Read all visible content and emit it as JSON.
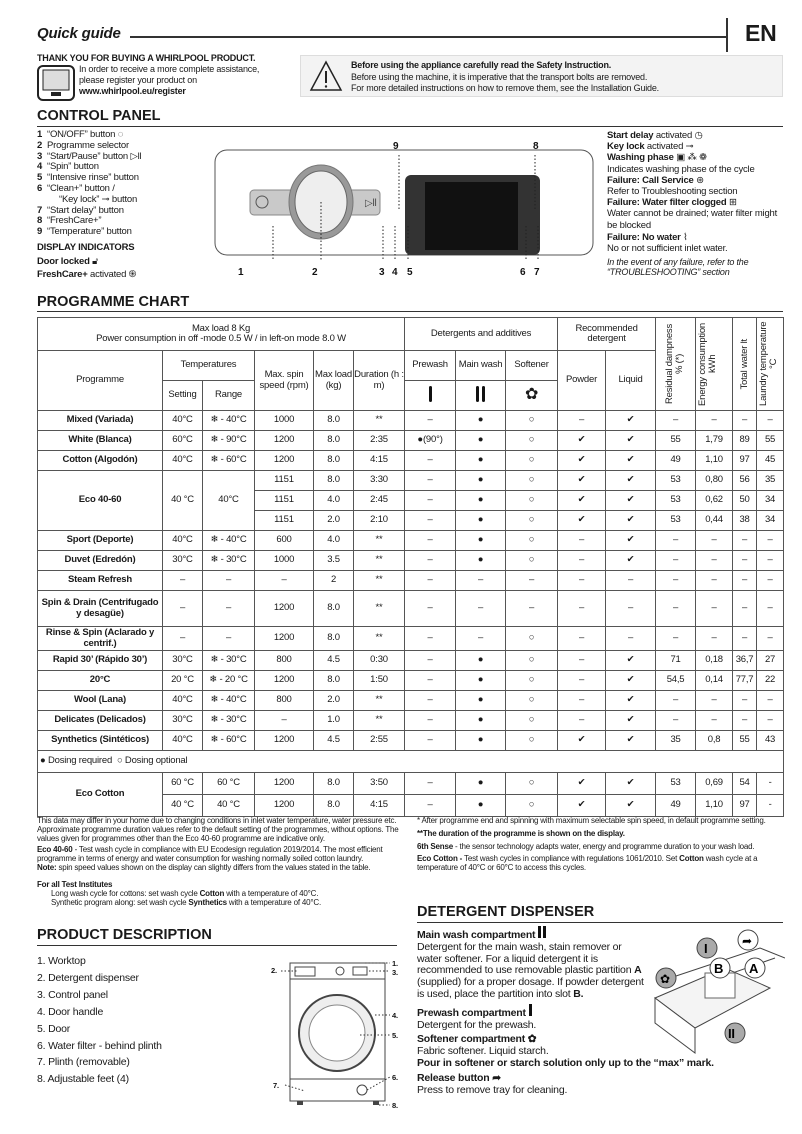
{
  "header": {
    "title": "Quick guide",
    "lang": "EN"
  },
  "thanks": {
    "heading": "THANK YOU FOR BUYING A WHIRLPOOL PRODUCT.",
    "line1": "In order to receive a more complete assistance,",
    "line2": "please register your product on",
    "url": "www.whirlpool.eu/register"
  },
  "safety": {
    "heading": "Before using the appliance carefully read the Safety Instruction.",
    "line1": "Before using the machine, it is imperative that the transport bolts are removed.",
    "line2": "For more detailed instructions on how to remove them, see the Installation Guide."
  },
  "control_panel": {
    "heading": "CONTROL PANEL",
    "items": [
      {
        "n": "1",
        "label": "“ON/OFF” button ◌"
      },
      {
        "n": "2",
        "label": "Programme selector"
      },
      {
        "n": "3",
        "label": "“Start/Pause” button ▷ll"
      },
      {
        "n": "4",
        "label": "“Spin” button"
      },
      {
        "n": "5",
        "label": "“Intensive rinse” button"
      },
      {
        "n": "6",
        "label": "“Clean+” button /"
      },
      {
        "n": "",
        "label": "“Key lock” ⊸ button"
      },
      {
        "n": "7",
        "label": "“Start delay” button"
      },
      {
        "n": "8",
        "label": "“FreshCare+”"
      },
      {
        "n": "9",
        "label": "“Temperature” button"
      }
    ],
    "display_heading": "DISPLAY INDICATORS",
    "door_locked": "Door locked",
    "freshcare_b": "FreshCare+",
    "freshcare_rest": " activated",
    "callouts": [
      "1",
      "2",
      "3",
      "4",
      "5",
      "6",
      "7",
      "8",
      "9"
    ],
    "right": {
      "start_delay_b": "Start delay",
      "start_delay": " activated",
      "key_lock_b": "Key lock",
      "key_lock": " activated",
      "washing_phase_b": "Washing phase",
      "washing_phase_desc": "Indicates washing phase of the cycle",
      "call_service_b": "Failure: Call Service",
      "call_service_desc": "Refer to Troubleshooting section",
      "filter_b": "Failure: Water filter clogged",
      "filter_desc": "Water cannot be drained; water filter might be blocked",
      "no_water_b": "Failure: No water",
      "no_water_desc": "No or not sufficient inlet water.",
      "failure_note": "In the event of any failure, refer to the “TROUBLESHOOTING” section"
    }
  },
  "programme_chart": {
    "heading": "PROGRAMME CHART",
    "top_header": {
      "line1": "Max load 8 Kg",
      "line2": "Power consumption in off -mode 0.5 W / in left-on mode 8.0 W",
      "detergents": "Detergents and additives",
      "recommended": "Recommended detergent",
      "residual": "Residual dampness % (*)",
      "energy": "Energy consumption kWh",
      "water": "Total water lt",
      "laundry_temp": "Laundry temperature °C"
    },
    "sub_header": {
      "programme": "Programme",
      "temperatures": "Temperatures",
      "setting": "Setting",
      "range": "Range",
      "spin": "Max. spin speed (rpm)",
      "load": "Max load (kg)",
      "duration": "Duration (h : m)",
      "prewash": "Prewash",
      "main_wash": "Main wash",
      "softener": "Softener",
      "powder": "Powder",
      "liquid": "Liquid"
    },
    "rows_a": [
      {
        "shared": [],
        "variants": [
          [
            "Mixed (Variada)",
            "40°C",
            "❄ - 40°C",
            "1000",
            "8.0",
            "**",
            "–",
            "●",
            "○",
            "–",
            "✔",
            "–",
            "–",
            "–",
            "–"
          ]
        ]
      },
      {
        "shared": [],
        "variants": [
          [
            "White (Blanca)",
            "60°C",
            "❄ - 90°C",
            "1200",
            "8.0",
            "2:35",
            "●(90°)",
            "●",
            "○",
            "✔",
            "✔",
            "55",
            "1,79",
            "89",
            "55"
          ]
        ]
      },
      {
        "shared": [],
        "variants": [
          [
            "Cotton (Algodón)",
            "40°C",
            "❄ - 60°C",
            "1200",
            "8.0",
            "4:15",
            "–",
            "●",
            "○",
            "✔",
            "✔",
            "49",
            "1,10",
            "97",
            "45"
          ]
        ]
      },
      {
        "shared": [
          "Eco 40-60",
          "40 °C",
          "40°C"
        ],
        "variants": [
          [
            "1151",
            "8.0",
            "3:30",
            "–",
            "●",
            "○",
            "✔",
            "✔",
            "53",
            "0,80",
            "56",
            "35"
          ],
          [
            "1151",
            "4.0",
            "2:45",
            "–",
            "●",
            "○",
            "✔",
            "✔",
            "53",
            "0,62",
            "50",
            "34"
          ],
          [
            "1151",
            "2.0",
            "2:10",
            "–",
            "●",
            "○",
            "✔",
            "✔",
            "53",
            "0,44",
            "38",
            "34"
          ]
        ]
      },
      {
        "shared": [],
        "variants": [
          [
            "Sport (Deporte)",
            "40°C",
            "❄ - 40°C",
            "600",
            "4.0",
            "**",
            "–",
            "●",
            "○",
            "–",
            "✔",
            "–",
            "–",
            "–",
            "–"
          ]
        ]
      },
      {
        "shared": [],
        "variants": [
          [
            "Duvet (Edredón)",
            "30°C",
            "❄ - 30°C",
            "1000",
            "3.5",
            "**",
            "–",
            "●",
            "○",
            "–",
            "✔",
            "–",
            "–",
            "–",
            "–"
          ]
        ]
      },
      {
        "shared": [],
        "variants": [
          [
            "Steam Refresh",
            "–",
            "–",
            "–",
            "2",
            "**",
            "–",
            "–",
            "–",
            "–",
            "–",
            "–",
            "–",
            "–",
            "–"
          ]
        ]
      },
      {
        "shared": [],
        "variants": [
          [
            "Spin & Drain (Centrifugado y desagüe)",
            "–",
            "–",
            "1200",
            "8.0",
            "**",
            "–",
            "–",
            "–",
            "–",
            "–",
            "–",
            "–",
            "–",
            "–"
          ]
        ]
      },
      {
        "shared": [],
        "variants": [
          [
            "Rinse & Spin (Aclarado y centrif.)",
            "–",
            "–",
            "1200",
            "8.0",
            "**",
            "–",
            "–",
            "○",
            "–",
            "–",
            "–",
            "–",
            "–",
            "–"
          ]
        ]
      },
      {
        "shared": [],
        "variants": [
          [
            "Rapid 30’ (Rápido 30’)",
            "30°C",
            "❄ - 30°C",
            "800",
            "4.5",
            "0:30",
            "–",
            "●",
            "○",
            "–",
            "✔",
            "71",
            "0,18",
            "36,7",
            "27"
          ]
        ]
      },
      {
        "shared": [],
        "variants": [
          [
            "20°C",
            "20 °C",
            "❄ - 20 °C",
            "1200",
            "8.0",
            "1:50",
            "–",
            "●",
            "○",
            "–",
            "✔",
            "54,5",
            "0,14",
            "77,7",
            "22"
          ]
        ]
      },
      {
        "shared": [],
        "variants": [
          [
            "Wool (Lana)",
            "40°C",
            "❄ - 40°C",
            "800",
            "2.0",
            "**",
            "–",
            "●",
            "○",
            "–",
            "✔",
            "–",
            "–",
            "–",
            "–"
          ]
        ]
      },
      {
        "shared": [],
        "variants": [
          [
            "Delicates (Delicados)",
            "30°C",
            "❄ - 30°C",
            "–",
            "1.0",
            "**",
            "–",
            "●",
            "○",
            "–",
            "✔",
            "–",
            "–",
            "–",
            "–"
          ]
        ]
      },
      {
        "shared": [],
        "variants": [
          [
            "Synthetics (Sintéticos)",
            "40°C",
            "❄ - 60°C",
            "1200",
            "4.5",
            "2:55",
            "–",
            "●",
            "○",
            "✔",
            "✔",
            "35",
            "0,8",
            "55",
            "43"
          ]
        ]
      }
    ],
    "legend": {
      "required": "● Dosing required",
      "optional": "○ Dosing optional"
    },
    "rows_b": [
      {
        "shared": [
          "Eco Cotton"
        ],
        "variants": [
          [
            "60 °C",
            "60 °C",
            "1200",
            "8.0",
            "3:50",
            "–",
            "●",
            "○",
            "✔",
            "✔",
            "53",
            "0,69",
            "54",
            "-"
          ],
          [
            "40 °C",
            "40 °C",
            "1200",
            "8.0",
            "4:15",
            "–",
            "●",
            "○",
            "✔",
            "✔",
            "49",
            "1,10",
            "97",
            "-"
          ]
        ]
      }
    ],
    "notes_left": {
      "p1": "This data may differ in your home due to changing conditions in inlet water temperature, water pressure etc. Approximate programme duration values refer to the default setting of the programmes, without options. The values given for programmes other than the Eco 40-60 programme are indicative only.",
      "eco_b": "Eco 40-60",
      "eco": " - Test wash cycle in compliance with EU Ecodesign regulation 2019/2014. The most efficient programme in terms of energy and water consumption for washing normally soiled cotton laundry.",
      "note_b": "Note:",
      "note": " spin speed values shown on the display can slightly differs from the values stated in the table.",
      "test_heading": "For all Test Institutes",
      "test1_a": "Long wash cycle for cottons:  set wash cycle ",
      "test1_b": "Cotton",
      "test1_c": " with a temperature of 40°C.",
      "test2_a": "Synthetic program along:  set wash cycle ",
      "test2_b": "Synthetics",
      "test2_c": "  with a temperature of 40°C."
    },
    "notes_right": {
      "star": "*      After programme end and spinning with maximum selectable spin speed, in default programme setting.",
      "dstar": "**The duration of the programme is shown on the display.",
      "sixth_b": "6th Sense",
      "sixth": " - the sensor technology adapts water, energy and programme duration to your wash load.",
      "ecoc_b": "Eco Cotton -",
      "ecoc_a": " Test wash cycles in compliance with regulations 1061/2010. Set ",
      "ecoc_c": "Cotton",
      "ecoc_d": " wash cycle at a temperature of 40°C or 60°C to access this cycles."
    }
  },
  "product_description": {
    "heading": "PRODUCT DESCRIPTION",
    "items": [
      "1.  Worktop",
      "2.  Detergent dispenser",
      "3.  Control panel",
      "4.  Door handle",
      "5.  Door",
      "6.  Water filter - behind plinth",
      "7.  Plinth (removable)",
      "8.  Adjustable feet (4)"
    ],
    "callouts": [
      "1.",
      "2.",
      "3.",
      "4.",
      "5.",
      "6.",
      "7.",
      "8."
    ]
  },
  "detergent_dispenser": {
    "heading": "DETERGENT DISPENSER",
    "main_b": "Main wash compartment",
    "main": "Detergent for the main wash, stain remover or water softener. For a liquid detergent it is recommended to use removable plastic partition ",
    "main_a": "A",
    "main_mid": " (supplied) for a proper dosage. If powder detergent is used, place the partition into slot ",
    "main_bslot": "B.",
    "prewash_b": "Prewash compartment",
    "prewash": "Detergent for the prewash.",
    "softener_b": "Softener compartment",
    "softener": "Fabric softener. Liquid starch.",
    "pour": "Pour in softener or starch solution only up to the “max” mark.",
    "release_b": "Release button",
    "release": "Press to remove tray for cleaning.",
    "diagram_labels": [
      "I",
      "II",
      "A",
      "B"
    ]
  }
}
